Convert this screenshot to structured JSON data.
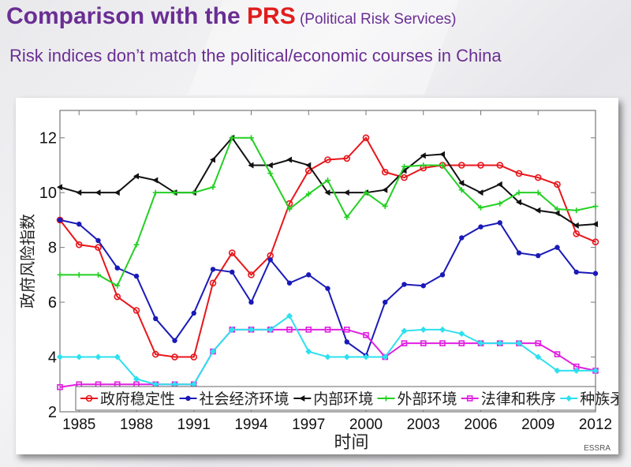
{
  "slide": {
    "title_main": "Comparison with the ",
    "title_highlight": "PRS",
    "title_paren": " (Political Risk Services)",
    "subtitle": "Risk indices don’t match the political/economic courses in China",
    "watermark": "ESSRA",
    "colors": {
      "title": "#6a2e93",
      "highlight": "#e11d1d"
    }
  },
  "chart_data": {
    "type": "line",
    "title": "",
    "xlabel": "时间",
    "ylabel": "政府风险指数",
    "xlim": [
      1984,
      2012
    ],
    "ylim": [
      2,
      13
    ],
    "xticks": [
      1985,
      1988,
      1991,
      1994,
      1997,
      2000,
      2003,
      2006,
      2009,
      2012
    ],
    "yticks": [
      2,
      4,
      6,
      8,
      10,
      12
    ],
    "grid": false,
    "legend_position": "bottom",
    "x": [
      1984,
      1985,
      1986,
      1987,
      1988,
      1989,
      1990,
      1991,
      1992,
      1993,
      1994,
      1995,
      1996,
      1997,
      1998,
      1999,
      2000,
      2001,
      2002,
      2003,
      2004,
      2005,
      2006,
      2007,
      2008,
      2009,
      2010,
      2011,
      2012
    ],
    "series": [
      {
        "name": "政府稳定性",
        "color": "#e8161b",
        "marker": "circle",
        "values": [
          9.0,
          8.1,
          8.0,
          6.2,
          5.7,
          4.1,
          4.0,
          4.0,
          6.7,
          7.8,
          7.0,
          7.7,
          9.6,
          10.8,
          11.2,
          11.25,
          12.0,
          10.75,
          10.55,
          10.9,
          11.0,
          11.0,
          11.0,
          11.0,
          10.7,
          10.55,
          10.3,
          8.5,
          8.2
        ]
      },
      {
        "name": "社会经济环境",
        "color": "#1a1ab8",
        "marker": "dot",
        "values": [
          9.0,
          8.85,
          8.25,
          7.25,
          6.95,
          5.4,
          4.6,
          5.6,
          7.2,
          7.1,
          6.0,
          7.55,
          6.7,
          7.0,
          6.5,
          4.55,
          4.05,
          6.0,
          6.65,
          6.6,
          7.0,
          8.35,
          8.75,
          8.9,
          7.8,
          7.7,
          8.0,
          7.1,
          7.05
        ]
      },
      {
        "name": "内部环境",
        "color": "#111111",
        "marker": "triangle-left",
        "values": [
          10.2,
          10.0,
          10.0,
          10.0,
          10.6,
          10.45,
          10.0,
          10.0,
          11.2,
          12.0,
          11.0,
          11.0,
          11.2,
          11.0,
          10.0,
          10.0,
          10.0,
          10.1,
          10.8,
          11.35,
          11.4,
          10.35,
          10.0,
          10.3,
          9.65,
          9.35,
          9.25,
          8.8,
          8.85
        ]
      },
      {
        "name": "外部环境",
        "color": "#22d022",
        "marker": "plus",
        "values": [
          7.0,
          7.0,
          7.0,
          6.6,
          8.1,
          10.0,
          10.0,
          10.0,
          10.2,
          12.0,
          12.0,
          10.7,
          9.4,
          9.95,
          10.45,
          9.1,
          10.0,
          9.5,
          10.95,
          11.0,
          11.0,
          10.1,
          9.45,
          9.6,
          10.0,
          10.0,
          9.4,
          9.35,
          9.5
        ]
      },
      {
        "name": "法律和秩序",
        "color": "#e020e0",
        "marker": "square",
        "values": [
          2.9,
          3.0,
          3.0,
          3.0,
          3.0,
          3.0,
          3.0,
          3.0,
          4.2,
          5.0,
          5.0,
          5.0,
          5.0,
          5.0,
          5.0,
          5.0,
          4.8,
          4.0,
          4.5,
          4.5,
          4.5,
          4.5,
          4.5,
          4.5,
          4.5,
          4.5,
          4.1,
          3.65,
          3.5
        ]
      },
      {
        "name": "种族矛盾",
        "color": "#2ee0ee",
        "marker": "diamond",
        "values": [
          4.0,
          4.0,
          4.0,
          4.0,
          3.2,
          3.0,
          3.0,
          3.0,
          4.2,
          5.0,
          5.0,
          5.0,
          5.5,
          4.2,
          4.0,
          4.0,
          4.0,
          4.0,
          4.95,
          5.0,
          5.0,
          4.85,
          4.5,
          4.5,
          4.5,
          4.0,
          3.5,
          3.5,
          3.5
        ]
      }
    ]
  }
}
